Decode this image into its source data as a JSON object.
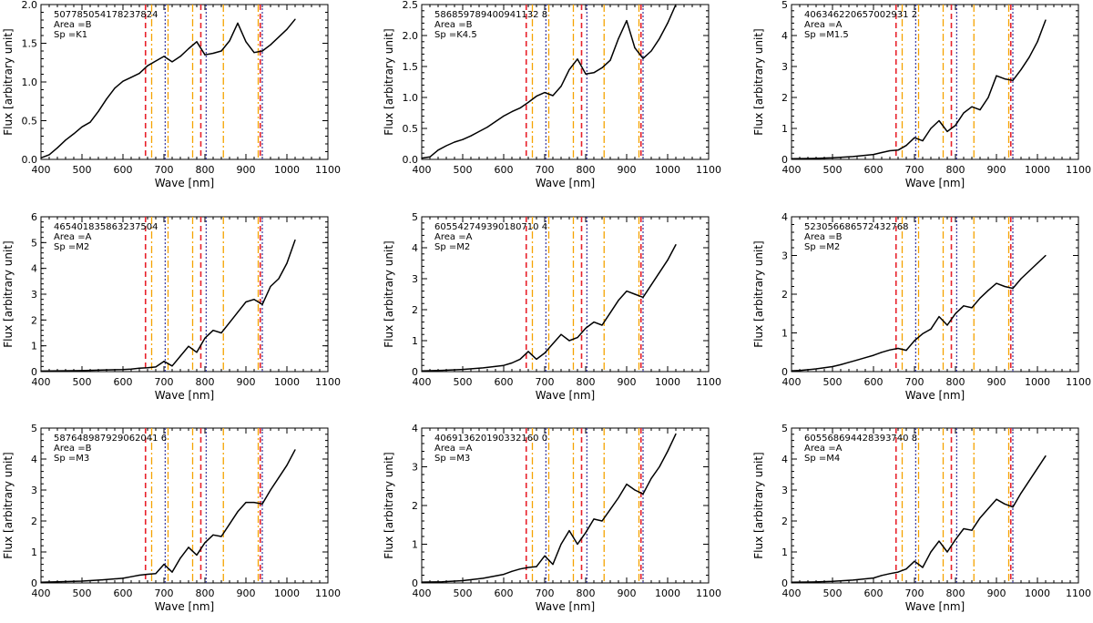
{
  "figure": {
    "xlabel": "Wave [nm]",
    "ylabel": "Flux [arbitrary unit]",
    "xticks": [
      "400",
      "500",
      "600",
      "700",
      "800",
      "900",
      "1000",
      "1100"
    ],
    "xlim": [
      400,
      1100
    ],
    "line_colors": {
      "spectrum": "#000000",
      "red": "#e8202a",
      "orange": "#f5a300",
      "blue": "#3a3aa0"
    },
    "vlines": {
      "red_dashed": [
        655,
        790,
        935
      ],
      "orange_dashdot": [
        670,
        710,
        770,
        845,
        930
      ],
      "blue_dotted": [
        703,
        803,
        940
      ]
    }
  },
  "chart_data": [
    {
      "type": "line",
      "id": "507785054178237824",
      "area": "B",
      "sp": "K1",
      "ylim": [
        0,
        2
      ],
      "yticks": [
        "0.0",
        "0.5",
        "1.0",
        "1.5",
        "2.0"
      ],
      "x": [
        400,
        420,
        440,
        460,
        480,
        500,
        520,
        540,
        560,
        580,
        600,
        620,
        640,
        660,
        680,
        700,
        720,
        740,
        760,
        780,
        800,
        820,
        840,
        860,
        880,
        900,
        920,
        940,
        960,
        980,
        1000,
        1020
      ],
      "y": [
        0.02,
        0.06,
        0.15,
        0.25,
        0.33,
        0.42,
        0.48,
        0.62,
        0.78,
        0.92,
        1.01,
        1.06,
        1.11,
        1.21,
        1.27,
        1.33,
        1.26,
        1.33,
        1.43,
        1.52,
        1.35,
        1.37,
        1.4,
        1.53,
        1.76,
        1.52,
        1.38,
        1.4,
        1.48,
        1.58,
        1.68,
        1.81
      ]
    },
    {
      "type": "line",
      "id": "586859789400941132 8",
      "area": "B",
      "sp": "K4.5",
      "ylim": [
        0,
        2.5
      ],
      "yticks": [
        "0.0",
        "0.5",
        "1.0",
        "1.5",
        "2.0",
        "2.5"
      ],
      "x": [
        400,
        420,
        440,
        460,
        480,
        500,
        520,
        540,
        560,
        580,
        600,
        620,
        640,
        660,
        680,
        700,
        720,
        740,
        760,
        780,
        800,
        820,
        840,
        860,
        880,
        900,
        920,
        940,
        960,
        980,
        1000,
        1020
      ],
      "y": [
        0.02,
        0.04,
        0.15,
        0.22,
        0.28,
        0.32,
        0.38,
        0.45,
        0.52,
        0.61,
        0.7,
        0.77,
        0.83,
        0.92,
        1.02,
        1.08,
        1.03,
        1.18,
        1.45,
        1.62,
        1.38,
        1.4,
        1.48,
        1.6,
        1.95,
        2.24,
        1.8,
        1.63,
        1.75,
        1.95,
        2.2,
        2.5
      ]
    },
    {
      "type": "line",
      "id": "406346220657002931 2",
      "area": "A",
      "sp": "M1.5",
      "ylim": [
        0,
        5
      ],
      "yticks": [
        "0",
        "1",
        "2",
        "3",
        "4",
        "5"
      ],
      "x": [
        400,
        450,
        500,
        550,
        600,
        620,
        640,
        660,
        680,
        700,
        720,
        740,
        760,
        780,
        800,
        820,
        840,
        860,
        880,
        900,
        920,
        940,
        960,
        980,
        1000,
        1020
      ],
      "y": [
        0.02,
        0.03,
        0.05,
        0.09,
        0.16,
        0.22,
        0.28,
        0.3,
        0.45,
        0.7,
        0.6,
        1.0,
        1.25,
        0.9,
        1.1,
        1.5,
        1.7,
        1.6,
        2.0,
        2.7,
        2.6,
        2.55,
        2.9,
        3.3,
        3.8,
        4.5
      ]
    },
    {
      "type": "line",
      "id": "465401835863237504",
      "area": "A",
      "sp": "M2",
      "ylim": [
        0,
        6
      ],
      "yticks": [
        "0",
        "1",
        "2",
        "3",
        "4",
        "5",
        "6"
      ],
      "x": [
        400,
        450,
        500,
        550,
        600,
        620,
        640,
        660,
        680,
        700,
        720,
        740,
        760,
        780,
        800,
        820,
        840,
        860,
        880,
        900,
        920,
        940,
        960,
        980,
        1000,
        1020
      ],
      "y": [
        0.02,
        0.03,
        0.04,
        0.06,
        0.08,
        0.1,
        0.13,
        0.15,
        0.18,
        0.4,
        0.22,
        0.6,
        0.98,
        0.75,
        1.3,
        1.6,
        1.5,
        1.9,
        2.3,
        2.7,
        2.8,
        2.6,
        3.3,
        3.6,
        4.2,
        5.1
      ]
    },
    {
      "type": "line",
      "id": "605542749390180710 4",
      "area": "A",
      "sp": "M2",
      "ylim": [
        0,
        5
      ],
      "yticks": [
        "0",
        "1",
        "2",
        "3",
        "4",
        "5"
      ],
      "x": [
        400,
        450,
        500,
        550,
        600,
        620,
        640,
        660,
        680,
        700,
        720,
        740,
        760,
        780,
        800,
        820,
        840,
        860,
        880,
        900,
        920,
        940,
        960,
        980,
        1000,
        1020
      ],
      "y": [
        0.02,
        0.04,
        0.07,
        0.12,
        0.2,
        0.28,
        0.4,
        0.65,
        0.4,
        0.6,
        0.9,
        1.2,
        1.0,
        1.1,
        1.4,
        1.6,
        1.5,
        1.9,
        2.3,
        2.6,
        2.5,
        2.4,
        2.8,
        3.2,
        3.6,
        4.1
      ]
    },
    {
      "type": "line",
      "id": "523056686572432768",
      "area": "B",
      "sp": "M2",
      "ylim": [
        0,
        4
      ],
      "yticks": [
        "0",
        "1",
        "2",
        "3",
        "4"
      ],
      "x": [
        400,
        420,
        440,
        460,
        480,
        500,
        520,
        540,
        560,
        580,
        600,
        620,
        640,
        660,
        680,
        700,
        720,
        740,
        760,
        780,
        800,
        820,
        840,
        860,
        880,
        900,
        920,
        940,
        960,
        980,
        1000,
        1020
      ],
      "y": [
        0.02,
        0.03,
        0.05,
        0.07,
        0.1,
        0.13,
        0.18,
        0.24,
        0.3,
        0.36,
        0.42,
        0.5,
        0.56,
        0.6,
        0.55,
        0.8,
        0.98,
        1.1,
        1.42,
        1.2,
        1.5,
        1.7,
        1.65,
        1.9,
        2.1,
        2.28,
        2.2,
        2.15,
        2.4,
        2.6,
        2.8,
        3.0
      ]
    },
    {
      "type": "line",
      "id": "587648987929062041 6",
      "area": "B",
      "sp": "M3",
      "ylim": [
        0,
        5
      ],
      "yticks": [
        "0",
        "1",
        "2",
        "3",
        "4",
        "5"
      ],
      "x": [
        400,
        450,
        500,
        550,
        600,
        620,
        640,
        660,
        680,
        700,
        720,
        740,
        760,
        780,
        800,
        820,
        840,
        860,
        880,
        900,
        920,
        940,
        960,
        980,
        1000,
        1020
      ],
      "y": [
        0.02,
        0.04,
        0.06,
        0.1,
        0.15,
        0.2,
        0.25,
        0.28,
        0.3,
        0.6,
        0.35,
        0.8,
        1.15,
        0.9,
        1.3,
        1.55,
        1.5,
        1.9,
        2.3,
        2.6,
        2.6,
        2.55,
        3.0,
        3.4,
        3.8,
        4.3
      ]
    },
    {
      "type": "line",
      "id": "406913620190332160 0",
      "area": "A",
      "sp": "M3",
      "ylim": [
        0,
        4
      ],
      "yticks": [
        "0",
        "1",
        "2",
        "3",
        "4"
      ],
      "x": [
        400,
        450,
        500,
        550,
        600,
        620,
        640,
        660,
        680,
        700,
        720,
        740,
        760,
        780,
        800,
        820,
        840,
        860,
        880,
        900,
        920,
        940,
        960,
        980,
        1000,
        1020
      ],
      "y": [
        0.02,
        0.03,
        0.06,
        0.12,
        0.22,
        0.3,
        0.36,
        0.4,
        0.42,
        0.7,
        0.48,
        1.0,
        1.35,
        1.0,
        1.3,
        1.65,
        1.6,
        1.9,
        2.2,
        2.55,
        2.4,
        2.3,
        2.7,
        3.0,
        3.4,
        3.85
      ]
    },
    {
      "type": "line",
      "id": "605568694428393740 8",
      "area": "A",
      "sp": "M4",
      "ylim": [
        0,
        5
      ],
      "yticks": [
        "0",
        "1",
        "2",
        "3",
        "4",
        "5"
      ],
      "x": [
        400,
        450,
        500,
        550,
        600,
        620,
        640,
        660,
        680,
        700,
        720,
        740,
        760,
        780,
        800,
        820,
        840,
        860,
        880,
        900,
        920,
        940,
        960,
        980,
        1000,
        1020
      ],
      "y": [
        0.02,
        0.03,
        0.05,
        0.09,
        0.16,
        0.24,
        0.3,
        0.35,
        0.45,
        0.7,
        0.5,
        1.0,
        1.35,
        1.0,
        1.4,
        1.75,
        1.7,
        2.1,
        2.4,
        2.7,
        2.55,
        2.45,
        2.9,
        3.3,
        3.7,
        4.1
      ]
    }
  ]
}
